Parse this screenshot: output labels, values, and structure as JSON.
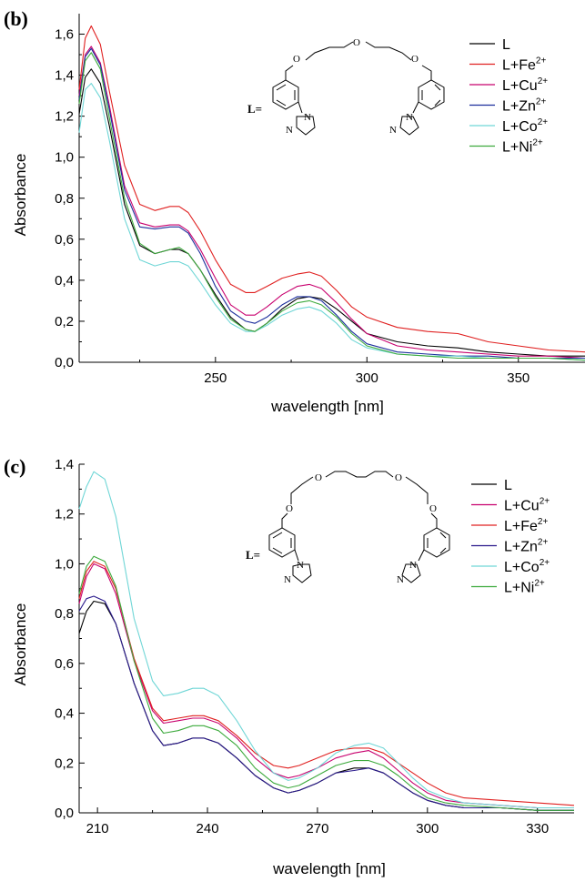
{
  "chart_data": [
    {
      "type": "line",
      "panel_label": "(b)",
      "xlabel": "wavelength [nm]",
      "ylabel": "Absorbance",
      "xlim": [
        205,
        372
      ],
      "ylim": [
        0,
        1.7
      ],
      "xticks": [
        250,
        300,
        350
      ],
      "yticks": [
        0.0,
        0.2,
        0.4,
        0.6,
        0.8,
        1.0,
        1.2,
        1.4,
        1.6
      ],
      "ytick_labels": [
        "0,0",
        "0,2",
        "0,4",
        "0,6",
        "0,8",
        "1,0",
        "1,2",
        "1,4",
        "1,6"
      ],
      "legend_position": "top-right",
      "legend": [
        {
          "base": "L",
          "sup": ""
        },
        {
          "base": "L+Fe",
          "sup": "2+"
        },
        {
          "base": "L+Cu",
          "sup": "2+"
        },
        {
          "base": "L+Zn",
          "sup": "2+"
        },
        {
          "base": "L+Co",
          "sup": "2+"
        },
        {
          "base": "L+Ni",
          "sup": "2+"
        }
      ],
      "molecule_label": "L=",
      "molecule_atoms": [
        "O",
        "O",
        "O",
        "N",
        "N",
        "N",
        "N"
      ],
      "series": [
        {
          "name": "L",
          "color": "#000000",
          "x": [
            205,
            207,
            209,
            212,
            215,
            220,
            225,
            230,
            235,
            238,
            241,
            245,
            250,
            255,
            260,
            263,
            267,
            272,
            277,
            281,
            285,
            290,
            295,
            300,
            310,
            320,
            330,
            340,
            350,
            360,
            372
          ],
          "y": [
            1.21,
            1.39,
            1.43,
            1.36,
            1.15,
            0.77,
            0.57,
            0.53,
            0.55,
            0.55,
            0.53,
            0.45,
            0.33,
            0.22,
            0.16,
            0.15,
            0.19,
            0.26,
            0.31,
            0.32,
            0.31,
            0.26,
            0.2,
            0.14,
            0.1,
            0.08,
            0.07,
            0.05,
            0.04,
            0.03,
            0.03
          ]
        },
        {
          "name": "L+Fe2+",
          "color": "#e02020",
          "x": [
            205,
            207,
            209,
            212,
            215,
            220,
            225,
            230,
            235,
            238,
            241,
            245,
            250,
            255,
            260,
            263,
            267,
            272,
            277,
            281,
            285,
            290,
            295,
            300,
            310,
            320,
            330,
            340,
            350,
            360,
            372
          ],
          "y": [
            1.33,
            1.58,
            1.64,
            1.55,
            1.32,
            0.96,
            0.77,
            0.74,
            0.76,
            0.76,
            0.73,
            0.64,
            0.5,
            0.38,
            0.34,
            0.34,
            0.37,
            0.41,
            0.43,
            0.44,
            0.42,
            0.35,
            0.27,
            0.22,
            0.17,
            0.15,
            0.14,
            0.1,
            0.08,
            0.06,
            0.05
          ]
        },
        {
          "name": "L+Cu2+",
          "color": "#c8006e",
          "x": [
            205,
            207,
            209,
            212,
            215,
            220,
            225,
            230,
            235,
            238,
            241,
            245,
            250,
            255,
            260,
            263,
            267,
            272,
            277,
            281,
            285,
            290,
            295,
            300,
            310,
            320,
            330,
            340,
            350,
            360,
            372
          ],
          "y": [
            1.3,
            1.5,
            1.54,
            1.46,
            1.25,
            0.86,
            0.68,
            0.66,
            0.67,
            0.67,
            0.64,
            0.55,
            0.41,
            0.28,
            0.23,
            0.23,
            0.27,
            0.33,
            0.37,
            0.38,
            0.36,
            0.29,
            0.21,
            0.14,
            0.08,
            0.06,
            0.05,
            0.04,
            0.03,
            0.03,
            0.02
          ]
        },
        {
          "name": "L+Zn2+",
          "color": "#1c2e9c",
          "x": [
            205,
            207,
            209,
            212,
            215,
            220,
            225,
            230,
            235,
            238,
            241,
            245,
            250,
            255,
            260,
            263,
            267,
            272,
            277,
            281,
            285,
            290,
            295,
            300,
            310,
            320,
            330,
            340,
            350,
            360,
            372
          ],
          "y": [
            1.28,
            1.49,
            1.53,
            1.45,
            1.23,
            0.84,
            0.66,
            0.65,
            0.66,
            0.66,
            0.63,
            0.53,
            0.37,
            0.25,
            0.2,
            0.19,
            0.22,
            0.28,
            0.32,
            0.32,
            0.3,
            0.23,
            0.15,
            0.09,
            0.05,
            0.04,
            0.03,
            0.03,
            0.02,
            0.02,
            0.02
          ]
        },
        {
          "name": "L+Co2+",
          "color": "#6fd6d6",
          "x": [
            205,
            207,
            209,
            212,
            215,
            220,
            225,
            230,
            235,
            238,
            241,
            245,
            250,
            255,
            260,
            263,
            267,
            272,
            277,
            281,
            285,
            290,
            295,
            300,
            310,
            320,
            330,
            340,
            350,
            360,
            372
          ],
          "y": [
            1.12,
            1.33,
            1.36,
            1.29,
            1.08,
            0.7,
            0.5,
            0.47,
            0.49,
            0.49,
            0.47,
            0.39,
            0.28,
            0.19,
            0.15,
            0.15,
            0.18,
            0.23,
            0.26,
            0.27,
            0.25,
            0.19,
            0.11,
            0.07,
            0.04,
            0.03,
            0.03,
            0.02,
            0.02,
            0.02,
            0.01
          ]
        },
        {
          "name": "L+Ni2+",
          "color": "#3daa3d",
          "x": [
            205,
            207,
            209,
            212,
            215,
            220,
            225,
            230,
            235,
            238,
            241,
            245,
            250,
            255,
            260,
            263,
            267,
            272,
            277,
            281,
            285,
            290,
            295,
            300,
            310,
            320,
            330,
            340,
            350,
            360,
            372
          ],
          "y": [
            1.26,
            1.47,
            1.51,
            1.43,
            1.19,
            0.8,
            0.58,
            0.53,
            0.55,
            0.56,
            0.53,
            0.45,
            0.32,
            0.21,
            0.16,
            0.15,
            0.19,
            0.25,
            0.29,
            0.3,
            0.28,
            0.22,
            0.14,
            0.08,
            0.04,
            0.03,
            0.02,
            0.02,
            0.02,
            0.02,
            0.01
          ]
        }
      ]
    },
    {
      "type": "line",
      "panel_label": "(c)",
      "xlabel": "wavelength [nm]",
      "ylabel": "Absorbance",
      "xlim": [
        205,
        340
      ],
      "ylim": [
        0,
        1.4
      ],
      "xticks": [
        210,
        240,
        270,
        300,
        330
      ],
      "yticks": [
        0.0,
        0.2,
        0.4,
        0.6,
        0.8,
        1.0,
        1.2,
        1.4
      ],
      "ytick_labels": [
        "0,0",
        "0,2",
        "0,4",
        "0,6",
        "0,8",
        "1,0",
        "1,2",
        "1,4"
      ],
      "legend_position": "top-right",
      "legend": [
        {
          "base": "L",
          "sup": ""
        },
        {
          "base": "L+Cu",
          "sup": "2+"
        },
        {
          "base": "L+Fe",
          "sup": "2+"
        },
        {
          "base": "L+Zn",
          "sup": "2+"
        },
        {
          "base": "L+Co",
          "sup": "2+"
        },
        {
          "base": "L+Ni",
          "sup": "2+"
        }
      ],
      "molecule_label": "L=",
      "molecule_atoms": [
        "O",
        "O",
        "O",
        "O",
        "N",
        "N",
        "N",
        "N"
      ],
      "series": [
        {
          "name": "L",
          "color": "#000000",
          "x": [
            205,
            207,
            209,
            212,
            215,
            220,
            225,
            228,
            232,
            236,
            239,
            243,
            248,
            253,
            258,
            262,
            265,
            270,
            275,
            280,
            284,
            288,
            292,
            296,
            300,
            305,
            310,
            320,
            330,
            340
          ],
          "y": [
            0.72,
            0.81,
            0.85,
            0.84,
            0.76,
            0.52,
            0.33,
            0.27,
            0.28,
            0.3,
            0.3,
            0.28,
            0.22,
            0.15,
            0.1,
            0.08,
            0.09,
            0.12,
            0.16,
            0.18,
            0.18,
            0.16,
            0.12,
            0.08,
            0.05,
            0.03,
            0.02,
            0.02,
            0.01,
            0.01
          ]
        },
        {
          "name": "L+Cu2+",
          "color": "#c8006e",
          "x": [
            205,
            207,
            209,
            212,
            215,
            220,
            225,
            228,
            232,
            236,
            239,
            243,
            248,
            253,
            258,
            262,
            265,
            270,
            275,
            280,
            284,
            288,
            292,
            296,
            300,
            305,
            310,
            320,
            330,
            340
          ],
          "y": [
            0.84,
            0.95,
            1.0,
            0.98,
            0.88,
            0.61,
            0.41,
            0.36,
            0.37,
            0.38,
            0.38,
            0.36,
            0.3,
            0.22,
            0.16,
            0.14,
            0.15,
            0.18,
            0.22,
            0.24,
            0.25,
            0.22,
            0.17,
            0.12,
            0.08,
            0.05,
            0.04,
            0.03,
            0.02,
            0.02
          ]
        },
        {
          "name": "L+Fe2+",
          "color": "#e02020",
          "x": [
            205,
            207,
            209,
            212,
            215,
            220,
            225,
            228,
            232,
            236,
            239,
            243,
            248,
            253,
            258,
            262,
            265,
            270,
            275,
            280,
            284,
            288,
            292,
            296,
            300,
            305,
            310,
            320,
            330,
            340
          ],
          "y": [
            0.86,
            0.97,
            1.01,
            0.99,
            0.9,
            0.62,
            0.42,
            0.37,
            0.38,
            0.39,
            0.39,
            0.37,
            0.31,
            0.24,
            0.19,
            0.18,
            0.19,
            0.22,
            0.25,
            0.26,
            0.26,
            0.24,
            0.2,
            0.16,
            0.12,
            0.08,
            0.06,
            0.05,
            0.04,
            0.03
          ]
        },
        {
          "name": "L+Zn2+",
          "color": "#2a1a8c",
          "x": [
            205,
            207,
            209,
            212,
            215,
            220,
            225,
            228,
            232,
            236,
            239,
            243,
            248,
            253,
            258,
            262,
            265,
            270,
            275,
            280,
            284,
            288,
            292,
            296,
            300,
            305,
            310,
            320,
            330,
            340
          ],
          "y": [
            0.81,
            0.86,
            0.87,
            0.85,
            0.76,
            0.52,
            0.33,
            0.27,
            0.28,
            0.3,
            0.3,
            0.28,
            0.22,
            0.15,
            0.1,
            0.08,
            0.09,
            0.12,
            0.16,
            0.17,
            0.18,
            0.16,
            0.12,
            0.08,
            0.05,
            0.03,
            0.02,
            0.02,
            0.01,
            0.01
          ]
        },
        {
          "name": "L+Co2+",
          "color": "#6fd6d6",
          "x": [
            205,
            207,
            209,
            212,
            215,
            220,
            225,
            228,
            232,
            236,
            239,
            243,
            248,
            253,
            258,
            262,
            265,
            270,
            275,
            280,
            284,
            288,
            292,
            296,
            300,
            305,
            310,
            320,
            330,
            340
          ],
          "y": [
            1.22,
            1.31,
            1.37,
            1.34,
            1.19,
            0.78,
            0.53,
            0.47,
            0.48,
            0.5,
            0.5,
            0.47,
            0.37,
            0.25,
            0.16,
            0.13,
            0.14,
            0.18,
            0.24,
            0.27,
            0.28,
            0.26,
            0.2,
            0.14,
            0.09,
            0.06,
            0.04,
            0.03,
            0.02,
            0.02
          ]
        },
        {
          "name": "L+Ni2+",
          "color": "#3daa3d",
          "x": [
            205,
            207,
            209,
            212,
            215,
            220,
            225,
            228,
            232,
            236,
            239,
            243,
            248,
            253,
            258,
            262,
            265,
            270,
            275,
            280,
            284,
            288,
            292,
            296,
            300,
            305,
            310,
            320,
            330,
            340
          ],
          "y": [
            0.88,
            0.99,
            1.03,
            1.01,
            0.91,
            0.61,
            0.38,
            0.32,
            0.33,
            0.35,
            0.35,
            0.33,
            0.27,
            0.18,
            0.12,
            0.1,
            0.11,
            0.15,
            0.19,
            0.21,
            0.21,
            0.19,
            0.15,
            0.1,
            0.06,
            0.04,
            0.03,
            0.02,
            0.01,
            0.01
          ]
        }
      ]
    }
  ]
}
